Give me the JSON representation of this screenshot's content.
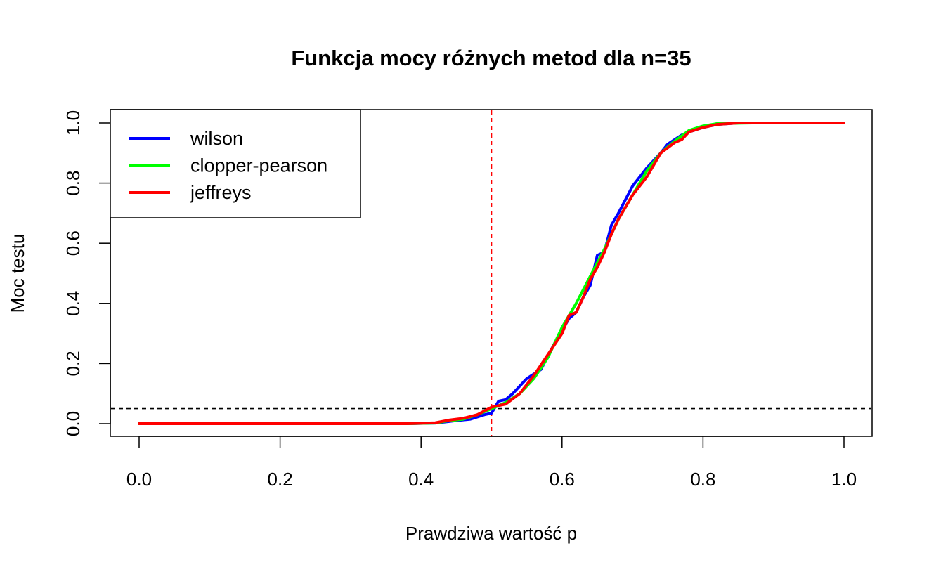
{
  "chart_data": {
    "type": "line",
    "title": "Funkcja mocy różnych metod dla n=35",
    "xlabel": "Prawdziwa wartość p",
    "ylabel": "Moc testu",
    "xlim": [
      0,
      1
    ],
    "ylim": [
      0,
      1
    ],
    "xticks": [
      "0.0",
      "0.2",
      "0.4",
      "0.6",
      "0.8",
      "1.0"
    ],
    "yticks": [
      "0.0",
      "0.2",
      "0.4",
      "0.6",
      "0.8",
      "1.0"
    ],
    "grid": false,
    "legend_position": "top-left",
    "reference_lines": [
      {
        "orientation": "vertical",
        "value": 0.5,
        "color": "#ff0000",
        "style": "dashed"
      },
      {
        "orientation": "horizontal",
        "value": 0.05,
        "color": "#000000",
        "style": "dashed"
      }
    ],
    "series": [
      {
        "name": "wilson",
        "color": "#0000ff",
        "x": [
          0.0,
          0.38,
          0.42,
          0.45,
          0.47,
          0.49,
          0.5,
          0.51,
          0.52,
          0.53,
          0.55,
          0.57,
          0.59,
          0.61,
          0.62,
          0.63,
          0.64,
          0.65,
          0.66,
          0.67,
          0.68,
          0.7,
          0.72,
          0.74,
          0.75,
          0.77,
          0.78,
          0.8,
          0.82,
          0.85,
          1.0
        ],
        "values": [
          0.0,
          0.0,
          0.002,
          0.01,
          0.015,
          0.03,
          0.035,
          0.075,
          0.08,
          0.1,
          0.15,
          0.18,
          0.27,
          0.35,
          0.37,
          0.42,
          0.46,
          0.56,
          0.57,
          0.66,
          0.7,
          0.79,
          0.85,
          0.9,
          0.93,
          0.96,
          0.97,
          0.985,
          0.995,
          1.0,
          1.0
        ]
      },
      {
        "name": "clopper-pearson",
        "color": "#00ff00",
        "x": [
          0.0,
          0.38,
          0.42,
          0.44,
          0.46,
          0.48,
          0.5,
          0.52,
          0.54,
          0.56,
          0.58,
          0.6,
          0.62,
          0.64,
          0.66,
          0.68,
          0.7,
          0.72,
          0.74,
          0.76,
          0.78,
          0.8,
          0.82,
          0.87,
          1.0
        ],
        "values": [
          0.0,
          0.0,
          0.002,
          0.01,
          0.015,
          0.03,
          0.05,
          0.07,
          0.1,
          0.15,
          0.22,
          0.32,
          0.4,
          0.49,
          0.58,
          0.68,
          0.76,
          0.84,
          0.9,
          0.94,
          0.975,
          0.99,
          0.998,
          1.0,
          1.0
        ]
      },
      {
        "name": "jeffreys",
        "color": "#ff0000",
        "x": [
          0.0,
          0.38,
          0.42,
          0.44,
          0.46,
          0.48,
          0.5,
          0.51,
          0.52,
          0.54,
          0.56,
          0.58,
          0.6,
          0.61,
          0.62,
          0.63,
          0.64,
          0.65,
          0.66,
          0.67,
          0.68,
          0.7,
          0.72,
          0.73,
          0.74,
          0.76,
          0.77,
          0.78,
          0.8,
          0.82,
          0.85,
          1.0
        ],
        "values": [
          0.0,
          0.0,
          0.003,
          0.012,
          0.018,
          0.03,
          0.055,
          0.06,
          0.065,
          0.1,
          0.16,
          0.23,
          0.3,
          0.36,
          0.37,
          0.42,
          0.48,
          0.52,
          0.57,
          0.63,
          0.68,
          0.76,
          0.82,
          0.86,
          0.9,
          0.935,
          0.945,
          0.97,
          0.985,
          0.995,
          1.0,
          1.0
        ]
      }
    ]
  }
}
